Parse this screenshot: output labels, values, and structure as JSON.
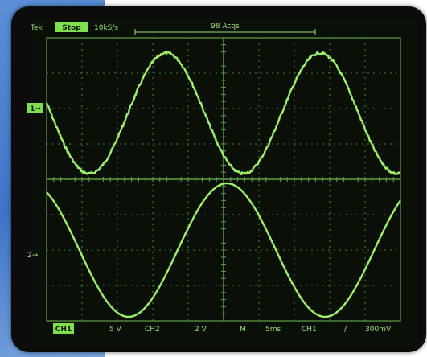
{
  "header": {
    "brand": "Tek",
    "mode_badge": "Stop",
    "sample_rate": "10kS/s",
    "acquisitions": "98 Acqs"
  },
  "markers": {
    "ch1_ground": "1→",
    "ch2_ground": "2→"
  },
  "footer": {
    "ch1_label": "CH1",
    "ch1_scale": "5 V",
    "ch2_label": "CH2",
    "ch2_scale": "2 V",
    "time_label": "M",
    "time_scale": "5ms",
    "trigger_source": "CH1",
    "trigger_slope": "/",
    "trigger_level": "300mV"
  },
  "colors": {
    "trace": "#9cf06a",
    "grid": "#5fa048",
    "screen": "#0a0f08",
    "badge": "#7ee04d"
  },
  "chart_data": {
    "type": "line",
    "grid": true,
    "x_divisions": 10,
    "y_divisions": 8,
    "series": [
      {
        "periods_shown": 2.3,
        "phase_offset_deg": 170,
        "noisy": true
      },
      {
        "periods_shown": 1.8,
        "phase_offset_deg": 120,
        "noisy": false
      }
    ]
  }
}
